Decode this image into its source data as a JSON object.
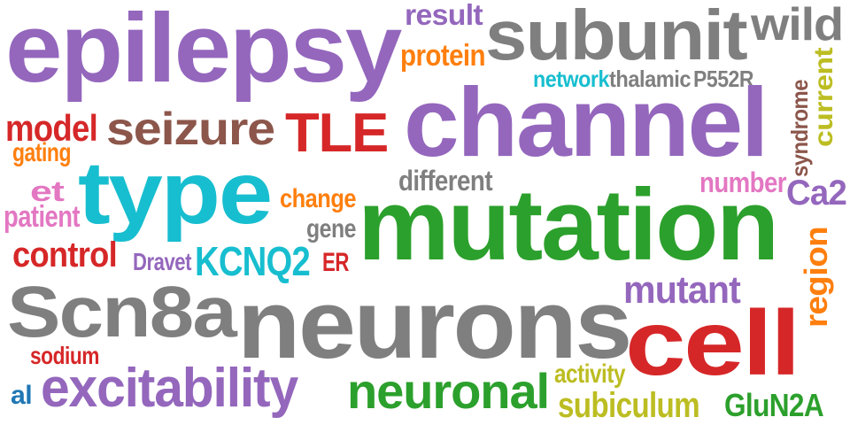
{
  "words": [
    {
      "key": "epilepsy",
      "text": "epilepsy",
      "color": "#9467bd"
    },
    {
      "key": "result",
      "text": "result",
      "color": "#9467bd"
    },
    {
      "key": "subunit",
      "text": "subunit",
      "color": "#7f7f7f"
    },
    {
      "key": "wild",
      "text": "wild",
      "color": "#7f7f7f"
    },
    {
      "key": "protein",
      "text": "protein",
      "color": "#ff7f0e"
    },
    {
      "key": "network",
      "text": "network",
      "color": "#17becf"
    },
    {
      "key": "thalamic",
      "text": "thalamic",
      "color": "#7f7f7f"
    },
    {
      "key": "p552r",
      "text": "P552R",
      "color": "#7f7f7f"
    },
    {
      "key": "current",
      "text": "current",
      "color": "#bcbd22"
    },
    {
      "key": "syndrome",
      "text": "syndrome",
      "color": "#8c564b"
    },
    {
      "key": "model",
      "text": "model",
      "color": "#d62728"
    },
    {
      "key": "seizure",
      "text": "seizure",
      "color": "#8c564b"
    },
    {
      "key": "tle",
      "text": "TLE",
      "color": "#d62728"
    },
    {
      "key": "channel",
      "text": "channel",
      "color": "#9467bd"
    },
    {
      "key": "gating",
      "text": "gating",
      "color": "#ff7f0e"
    },
    {
      "key": "type",
      "text": "type",
      "color": "#17becf"
    },
    {
      "key": "different",
      "text": "different",
      "color": "#7f7f7f"
    },
    {
      "key": "number",
      "text": "number",
      "color": "#e377c2"
    },
    {
      "key": "ca2",
      "text": "Ca2",
      "color": "#9467bd"
    },
    {
      "key": "et",
      "text": "et",
      "color": "#e377c2"
    },
    {
      "key": "change",
      "text": "change",
      "color": "#ff7f0e"
    },
    {
      "key": "patient",
      "text": "patient",
      "color": "#e377c2"
    },
    {
      "key": "mutation",
      "text": "mutation",
      "color": "#2ca02c"
    },
    {
      "key": "gene",
      "text": "gene",
      "color": "#7f7f7f"
    },
    {
      "key": "control",
      "text": "control",
      "color": "#d62728"
    },
    {
      "key": "dravet",
      "text": "Dravet",
      "color": "#9467bd"
    },
    {
      "key": "kcnq2",
      "text": "KCNQ2",
      "color": "#17becf"
    },
    {
      "key": "er",
      "text": "ER",
      "color": "#d62728"
    },
    {
      "key": "region",
      "text": "region",
      "color": "#ff7f0e"
    },
    {
      "key": "scn8a",
      "text": "Scn8a",
      "color": "#7f7f7f"
    },
    {
      "key": "neurons",
      "text": "neurons",
      "color": "#7f7f7f"
    },
    {
      "key": "mutant",
      "text": "mutant",
      "color": "#9467bd"
    },
    {
      "key": "cell",
      "text": "cell",
      "color": "#d62728"
    },
    {
      "key": "sodium",
      "text": "sodium",
      "color": "#d62728"
    },
    {
      "key": "excitability",
      "text": "excitability",
      "color": "#9467bd"
    },
    {
      "key": "activity",
      "text": "activity",
      "color": "#bcbd22"
    },
    {
      "key": "al",
      "text": "al",
      "color": "#1f77b4"
    },
    {
      "key": "neuronal",
      "text": "neuronal",
      "color": "#2ca02c"
    },
    {
      "key": "subiculum",
      "text": "subiculum",
      "color": "#bcbd22"
    },
    {
      "key": "glun2a",
      "text": "GluN2A",
      "color": "#2ca02c"
    }
  ]
}
